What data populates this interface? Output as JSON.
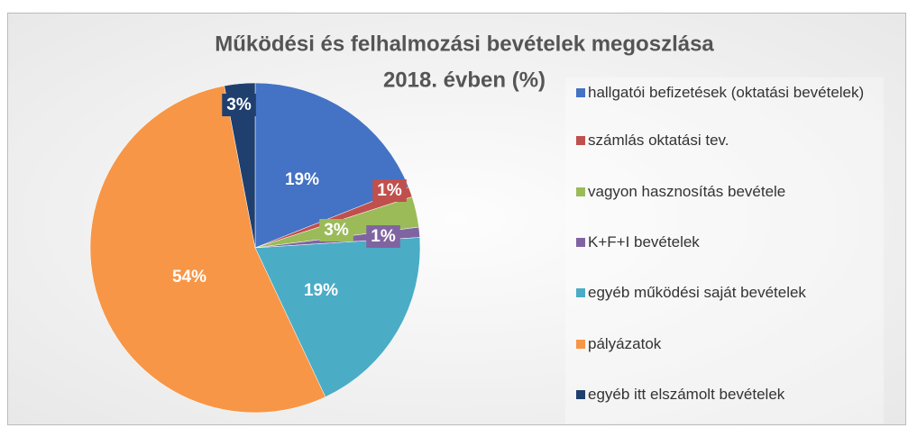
{
  "chart_data": {
    "type": "pie",
    "title": "Működési és felhalmozási bevételek megoszlása",
    "subtitle": "2018. évben (%)",
    "categories": [
      "hallgatói befizetések (oktatási bevételek)",
      "számlás oktatási tev.",
      "vagyon hasznosítás bevétele",
      "K+F+I bevételek",
      "egyéb működési saját bevételek",
      "pályázatok",
      "egyéb itt elszámolt bevételek"
    ],
    "values": [
      19,
      1,
      3,
      1,
      19,
      54,
      3
    ],
    "value_labels": [
      "19%",
      "1%",
      "3%",
      "1%",
      "19%",
      "54%",
      "3%"
    ],
    "colors": [
      "#4472c4",
      "#c0504d",
      "#9bbb59",
      "#8064a2",
      "#4bacc6",
      "#f79646",
      "#1f3f6e"
    ],
    "legend": "right"
  }
}
